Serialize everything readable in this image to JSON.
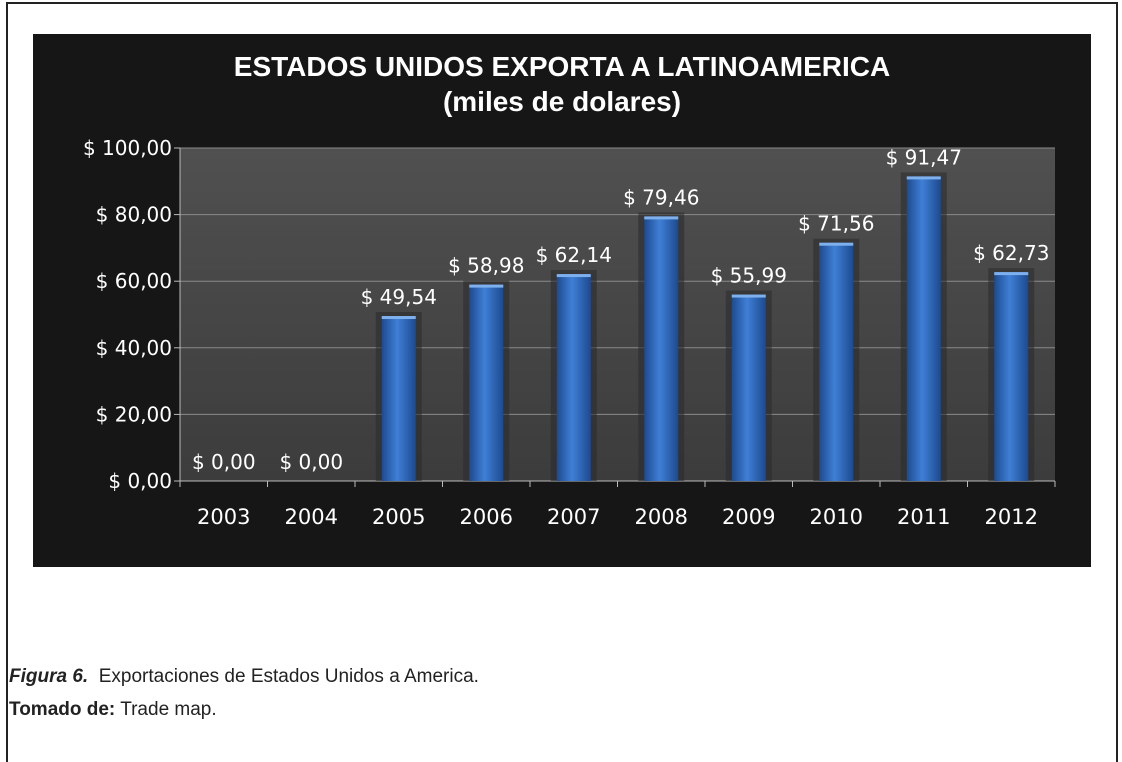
{
  "chart_data": {
    "type": "bar",
    "title": "ESTADOS UNIDOS EXPORTA  A LATINOAMERICA",
    "subtitle": "(miles de dolares)",
    "categories": [
      "2003",
      "2004",
      "2005",
      "2006",
      "2007",
      "2008",
      "2009",
      "2010",
      "2011",
      "2012"
    ],
    "values": [
      0.0,
      0.0,
      49.54,
      58.98,
      62.14,
      79.46,
      55.99,
      71.56,
      91.47,
      62.73
    ],
    "data_labels": [
      "$ 0,00",
      "$ 0,00",
      "$ 49,54",
      "$ 58,98",
      "$ 62,14",
      "$ 79,46",
      "$ 55,99",
      "$ 71,56",
      "$ 91,47",
      "$ 62,73"
    ],
    "ytick_labels": [
      "$ 0,00",
      "$ 20,00",
      "$ 40,00",
      "$ 60,00",
      "$ 80,00",
      "$ 100,00"
    ],
    "yticks": [
      0,
      20,
      40,
      60,
      80,
      100
    ],
    "ylim": [
      0,
      100
    ],
    "grid": true,
    "legend": "none",
    "colors": {
      "background": "#161616",
      "plot_area": "#4a4a4a",
      "bar": "#2f67b8",
      "text": "#ffffff",
      "grid": "#8a8a8a"
    }
  },
  "caption": {
    "figure_label": "Figura 6.",
    "figure_text": "Exportaciones de Estados Unidos a America.",
    "source_label": "Tomado de:",
    "source_text": "Trade map."
  }
}
